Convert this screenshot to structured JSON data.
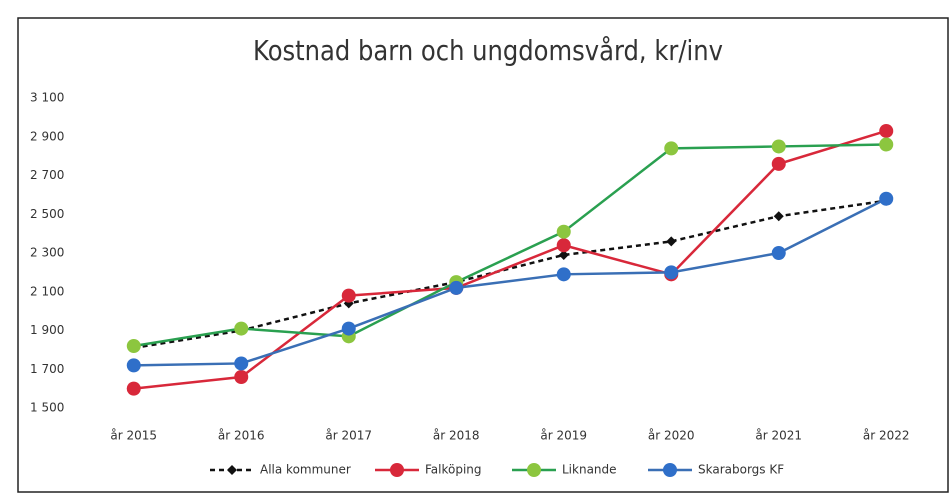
{
  "chart_data": {
    "type": "line",
    "title": "Kostnad barn och ungdomsvård, kr/inv",
    "categories": [
      "år 2015",
      "år 2016",
      "år 2017",
      "år 2018",
      "år 2019",
      "år 2020",
      "år 2021",
      "år 2022"
    ],
    "series": [
      {
        "name": "Alla kommuner",
        "color": "#111111",
        "marker": "diamond",
        "dashed": true,
        "values": [
          1810,
          1900,
          2040,
          2150,
          2290,
          2360,
          2490,
          2570
        ]
      },
      {
        "name": "Falköping",
        "color": "#d8283a",
        "marker": "circle",
        "dashed": false,
        "values": [
          1600,
          1660,
          2080,
          2120,
          2340,
          2190,
          2760,
          2930
        ]
      },
      {
        "name": "Liknande",
        "color": "#2aa050",
        "marker_color": "#8cc63f",
        "marker": "circle",
        "dashed": false,
        "values": [
          1820,
          1910,
          1870,
          2150,
          2410,
          2840,
          2850,
          2860
        ]
      },
      {
        "name": "Skaraborgs KF",
        "color": "#3a6fb5",
        "marker_color": "#2f6fc9",
        "marker": "circle",
        "dashed": false,
        "values": [
          1720,
          1730,
          1910,
          2120,
          2190,
          2200,
          2300,
          2580
        ]
      }
    ],
    "ylim": [
      1500,
      3100
    ],
    "yticks": [
      {
        "value": 1500,
        "label": "1 500"
      },
      {
        "value": 1700,
        "label": "1 700"
      },
      {
        "value": 1900,
        "label": "1 900"
      },
      {
        "value": 2100,
        "label": "2 100"
      },
      {
        "value": 2300,
        "label": "2 300"
      },
      {
        "value": 2500,
        "label": "2 500"
      },
      {
        "value": 2700,
        "label": "2 700"
      },
      {
        "value": 2900,
        "label": "2 900"
      },
      {
        "value": 3100,
        "label": "3 100"
      }
    ],
    "grid": false,
    "legend": "bottom"
  }
}
